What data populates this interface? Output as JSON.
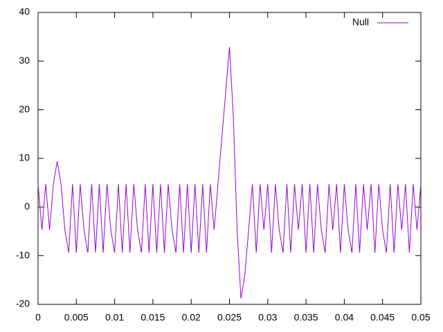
{
  "chart_data": {
    "type": "line",
    "x": [
      0,
      0.0005,
      0.001,
      0.0015,
      0.002,
      0.0025,
      0.003,
      0.0035,
      0.004,
      0.0045,
      0.005,
      0.0055,
      0.006,
      0.0065,
      0.007,
      0.0075,
      0.008,
      0.0085,
      0.009,
      0.0095,
      0.01,
      0.0105,
      0.011,
      0.0115,
      0.012,
      0.0125,
      0.013,
      0.0135,
      0.014,
      0.0145,
      0.015,
      0.0155,
      0.016,
      0.0165,
      0.017,
      0.0175,
      0.018,
      0.0185,
      0.019,
      0.0195,
      0.02,
      0.0205,
      0.021,
      0.0215,
      0.022,
      0.0225,
      0.023,
      0.0235,
      0.024,
      0.0245,
      0.025,
      0.0255,
      0.026,
      0.0265,
      0.027,
      0.0275,
      0.028,
      0.0285,
      0.029,
      0.0295,
      0.03,
      0.0305,
      0.031,
      0.0315,
      0.032,
      0.0325,
      0.033,
      0.0335,
      0.034,
      0.0345,
      0.035,
      0.0355,
      0.036,
      0.0365,
      0.037,
      0.0375,
      0.038,
      0.0385,
      0.039,
      0.0395,
      0.04,
      0.0405,
      0.041,
      0.0415,
      0.042,
      0.0425,
      0.043,
      0.0435,
      0.044,
      0.0445,
      0.045,
      0.0455,
      0.046,
      0.0465,
      0.047,
      0.0475,
      0.048,
      0.0485,
      0.049,
      0.0495,
      0.05
    ],
    "series": [
      {
        "name": "Null",
        "color": "#9400d3",
        "values": [
          4.7,
          -4.7,
          4.7,
          -4.7,
          4.7,
          9.4,
          4.7,
          -4.7,
          -9.4,
          4.7,
          -9.4,
          4.7,
          -4.7,
          -9.4,
          4.7,
          -9.4,
          4.7,
          -9.4,
          4.7,
          -4.7,
          -9.4,
          4.7,
          -9.4,
          4.7,
          -9.4,
          4.7,
          -4.7,
          -9.4,
          4.7,
          -9.4,
          4.7,
          -9.4,
          4.7,
          -9.4,
          4.7,
          -4.7,
          -9.4,
          4.7,
          -9.4,
          4.7,
          -9.4,
          4.7,
          -9.4,
          4.7,
          -9.4,
          4.7,
          -4.7,
          4.7,
          14.1,
          23.5,
          32.9,
          18.8,
          -4.7,
          -18.8,
          -14.1,
          -4.7,
          4.7,
          -9.4,
          4.7,
          -4.7,
          4.7,
          -9.4,
          4.7,
          -4.7,
          -9.4,
          4.7,
          -9.4,
          4.7,
          -4.7,
          4.7,
          -9.4,
          4.7,
          -9.4,
          4.7,
          -4.7,
          -9.4,
          4.7,
          -4.7,
          4.7,
          -9.4,
          4.7,
          -4.7,
          -9.4,
          4.7,
          -9.4,
          4.7,
          -4.7,
          4.7,
          -9.4,
          4.7,
          -4.7,
          -9.4,
          4.7,
          -9.4,
          4.7,
          -4.7,
          4.7,
          -9.4,
          4.7,
          -4.7,
          4.7
        ]
      }
    ],
    "xlim": [
      0,
      0.05
    ],
    "xticks": [
      0,
      0.005,
      0.01,
      0.015,
      0.02,
      0.025,
      0.03,
      0.035,
      0.04,
      0.045,
      0.05
    ],
    "ylim": [
      -20,
      40
    ],
    "yticks": [
      -20,
      -10,
      0,
      10,
      20,
      30,
      40
    ],
    "legend": "top-right"
  }
}
